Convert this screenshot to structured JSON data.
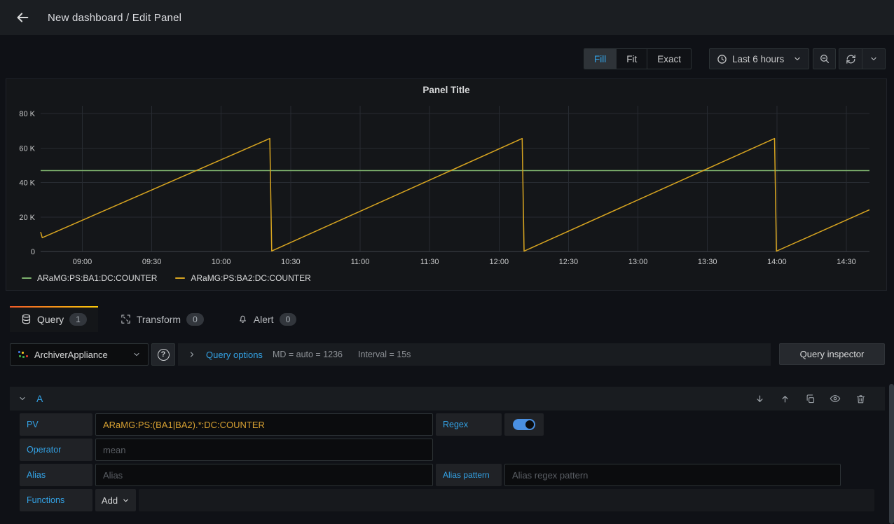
{
  "topbar": {
    "title": "New dashboard / Edit Panel"
  },
  "toolbar": {
    "display_modes": [
      {
        "label": "Fill",
        "active": true
      },
      {
        "label": "Fit",
        "active": false
      },
      {
        "label": "Exact",
        "active": false
      }
    ],
    "time_range_label": "Last 6 hours"
  },
  "chart_data": {
    "type": "line",
    "title": "Panel Title",
    "grid": true,
    "legend_position": "bottom-left",
    "x_axis": {
      "unit": "time-of-day-minutes",
      "min": 522,
      "max": 880,
      "ticks": [
        {
          "t": 540,
          "label": "09:00"
        },
        {
          "t": 570,
          "label": "09:30"
        },
        {
          "t": 600,
          "label": "10:00"
        },
        {
          "t": 630,
          "label": "10:30"
        },
        {
          "t": 660,
          "label": "11:00"
        },
        {
          "t": 690,
          "label": "11:30"
        },
        {
          "t": 720,
          "label": "12:00"
        },
        {
          "t": 750,
          "label": "12:30"
        },
        {
          "t": 780,
          "label": "13:00"
        },
        {
          "t": 810,
          "label": "13:30"
        },
        {
          "t": 840,
          "label": "14:00"
        },
        {
          "t": 870,
          "label": "14:30"
        }
      ]
    },
    "y_axis": {
      "min": 0,
      "max": 80000,
      "ticks": [
        {
          "v": 0,
          "label": "0"
        },
        {
          "v": 20000,
          "label": "20 K"
        },
        {
          "v": 40000,
          "label": "40 K"
        },
        {
          "v": 60000,
          "label": "60 K"
        },
        {
          "v": 80000,
          "label": "80 K"
        }
      ]
    },
    "series": [
      {
        "name": "ARaMG:PS:BA1:DC:COUNTER",
        "color": "#7eb26d",
        "points": [
          [
            522,
            46900
          ],
          [
            880,
            46900
          ]
        ]
      },
      {
        "name": "ARaMG:PS:BA2:DC:COUNTER",
        "color": "#d8a520",
        "points": [
          [
            522,
            11300
          ],
          [
            522.7,
            8000
          ],
          [
            621,
            65500
          ],
          [
            621.8,
            300
          ],
          [
            730,
            65500
          ],
          [
            730.8,
            200
          ],
          [
            839,
            65500
          ],
          [
            839.8,
            200
          ],
          [
            880,
            24200
          ]
        ]
      }
    ]
  },
  "tabs": [
    {
      "label": "Query",
      "count": "1",
      "active": true
    },
    {
      "label": "Transform",
      "count": "0",
      "active": false
    },
    {
      "label": "Alert",
      "count": "0",
      "active": false
    }
  ],
  "datasource_bar": {
    "datasource_name": "ArchiverAppliance",
    "query_options_label": "Query options",
    "md_text": "MD = auto = 1236",
    "interval_text": "Interval = 15s",
    "inspector_label": "Query inspector"
  },
  "query_editor": {
    "ref_id": "A",
    "pv_label": "PV",
    "pv_value": "ARaMG:PS:(BA1|BA2).*:DC:COUNTER",
    "regex_label": "Regex",
    "regex_enabled": true,
    "operator_label": "Operator",
    "operator_placeholder": "mean",
    "alias_label": "Alias",
    "alias_placeholder": "Alias",
    "alias_pattern_label": "Alias pattern",
    "alias_pattern_placeholder": "Alias regex pattern",
    "functions_label": "Functions",
    "add_label": "Add"
  },
  "colors": {
    "accent_blue": "#33a2e5",
    "series_green": "#7eb26d",
    "series_yellow": "#d8a520",
    "toggle_on": "#4a90e2",
    "tab_gradient_start": "#f05a28",
    "tab_gradient_end": "#fbca0a"
  }
}
